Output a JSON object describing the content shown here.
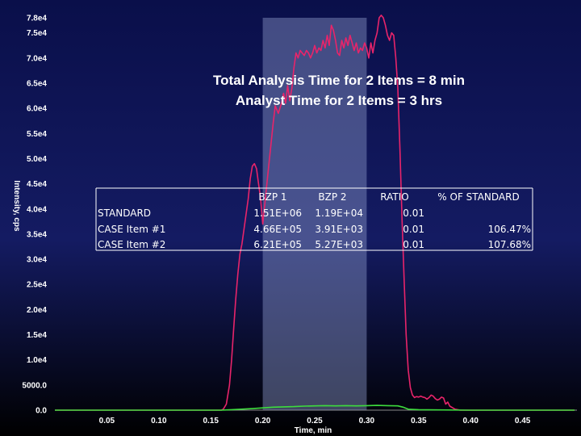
{
  "chart_data": {
    "type": "line",
    "xlabel": "Time, min",
    "ylabel": "Intensity, cps",
    "xlim": [
      0.0,
      0.5
    ],
    "ylim": [
      0,
      78000
    ],
    "y_tick_labels": [
      "0.0",
      "5000.0",
      "1.0e4",
      "1.5e4",
      "2.0e4",
      "2.5e4",
      "3.0e4",
      "3.5e4",
      "4.0e4",
      "4.5e4",
      "5.0e4",
      "5.5e4",
      "6.0e4",
      "6.5e4",
      "7.0e4",
      "7.5e4",
      "7.8e4"
    ],
    "y_tick_values": [
      0,
      5000,
      10000,
      15000,
      20000,
      25000,
      30000,
      35000,
      40000,
      45000,
      50000,
      55000,
      60000,
      65000,
      70000,
      75000,
      78000
    ],
    "x_tick_labels": [
      "0.05",
      "0.10",
      "0.15",
      "0.20",
      "0.25",
      "0.30",
      "0.35",
      "0.40",
      "0.45"
    ],
    "x_tick_values": [
      0.05,
      0.1,
      0.15,
      0.2,
      0.25,
      0.3,
      0.35,
      0.4,
      0.45
    ],
    "highlight_band": {
      "x_start": 0.2,
      "x_end": 0.3,
      "color": "#8a96c8"
    },
    "annotation_lines": [
      "Total Analysis Time for 2 Items = 8 min",
      "Analyst Time for 2 Items = 3 hrs"
    ],
    "grid": false,
    "series": [
      {
        "color": "#e8246a",
        "points": [
          [
            0.0,
            0
          ],
          [
            0.16,
            0
          ],
          [
            0.162,
            200
          ],
          [
            0.165,
            1200
          ],
          [
            0.168,
            5000
          ],
          [
            0.17,
            10000
          ],
          [
            0.172,
            16000
          ],
          [
            0.174,
            22000
          ],
          [
            0.176,
            27000
          ],
          [
            0.178,
            31000
          ],
          [
            0.18,
            33000
          ],
          [
            0.182,
            36000
          ],
          [
            0.184,
            39000
          ],
          [
            0.186,
            42000
          ],
          [
            0.188,
            46000
          ],
          [
            0.19,
            48500
          ],
          [
            0.192,
            49000
          ],
          [
            0.194,
            48000
          ],
          [
            0.196,
            45000
          ],
          [
            0.198,
            42000
          ],
          [
            0.2,
            37000
          ],
          [
            0.202,
            41000
          ],
          [
            0.205,
            47000
          ],
          [
            0.208,
            53000
          ],
          [
            0.21,
            57000
          ],
          [
            0.212,
            60500
          ],
          [
            0.215,
            59000
          ],
          [
            0.218,
            61000
          ],
          [
            0.22,
            63000
          ],
          [
            0.222,
            61000
          ],
          [
            0.224,
            64500
          ],
          [
            0.226,
            61500
          ],
          [
            0.228,
            64000
          ],
          [
            0.23,
            68000
          ],
          [
            0.232,
            71000
          ],
          [
            0.234,
            70000
          ],
          [
            0.236,
            71500
          ],
          [
            0.238,
            71000
          ],
          [
            0.24,
            70500
          ],
          [
            0.242,
            71500
          ],
          [
            0.244,
            71000
          ],
          [
            0.246,
            70000
          ],
          [
            0.248,
            71000
          ],
          [
            0.25,
            72500
          ],
          [
            0.252,
            71000
          ],
          [
            0.254,
            72000
          ],
          [
            0.256,
            71500
          ],
          [
            0.258,
            73500
          ],
          [
            0.26,
            72000
          ],
          [
            0.262,
            74500
          ],
          [
            0.264,
            72500
          ],
          [
            0.266,
            76500
          ],
          [
            0.268,
            75500
          ],
          [
            0.27,
            73500
          ],
          [
            0.272,
            71000
          ],
          [
            0.274,
            70500
          ],
          [
            0.276,
            73500
          ],
          [
            0.278,
            72000
          ],
          [
            0.28,
            74000
          ],
          [
            0.282,
            72500
          ],
          [
            0.284,
            74500
          ],
          [
            0.286,
            73000
          ],
          [
            0.288,
            71500
          ],
          [
            0.29,
            73000
          ],
          [
            0.292,
            71000
          ],
          [
            0.294,
            72000
          ],
          [
            0.296,
            71500
          ],
          [
            0.298,
            73000
          ],
          [
            0.3,
            72000
          ],
          [
            0.302,
            70000
          ],
          [
            0.304,
            73000
          ],
          [
            0.306,
            71000
          ],
          [
            0.308,
            73500
          ],
          [
            0.31,
            75000
          ],
          [
            0.312,
            78000
          ],
          [
            0.314,
            78500
          ],
          [
            0.316,
            78000
          ],
          [
            0.318,
            76500
          ],
          [
            0.32,
            74500
          ],
          [
            0.322,
            73500
          ],
          [
            0.324,
            75000
          ],
          [
            0.326,
            74500
          ],
          [
            0.328,
            70000
          ],
          [
            0.33,
            64000
          ],
          [
            0.332,
            52000
          ],
          [
            0.334,
            38000
          ],
          [
            0.336,
            26000
          ],
          [
            0.338,
            15000
          ],
          [
            0.34,
            8000
          ],
          [
            0.342,
            4500
          ],
          [
            0.344,
            3000
          ],
          [
            0.346,
            2500
          ],
          [
            0.348,
            2700
          ],
          [
            0.35,
            2600
          ],
          [
            0.352,
            2800
          ],
          [
            0.354,
            2600
          ],
          [
            0.356,
            2500
          ],
          [
            0.358,
            2200
          ],
          [
            0.36,
            2500
          ],
          [
            0.362,
            3000
          ],
          [
            0.364,
            2800
          ],
          [
            0.366,
            2300
          ],
          [
            0.368,
            2000
          ],
          [
            0.37,
            2200
          ],
          [
            0.372,
            2600
          ],
          [
            0.374,
            2400
          ],
          [
            0.376,
            1200
          ],
          [
            0.378,
            1600
          ],
          [
            0.38,
            800
          ],
          [
            0.385,
            200
          ],
          [
            0.39,
            0
          ],
          [
            0.5,
            0
          ]
        ]
      },
      {
        "color": "#3ddc3d",
        "points": [
          [
            0.0,
            0
          ],
          [
            0.16,
            0
          ],
          [
            0.17,
            100
          ],
          [
            0.19,
            300
          ],
          [
            0.2,
            450
          ],
          [
            0.21,
            600
          ],
          [
            0.22,
            650
          ],
          [
            0.23,
            700
          ],
          [
            0.24,
            800
          ],
          [
            0.25,
            850
          ],
          [
            0.26,
            900
          ],
          [
            0.27,
            850
          ],
          [
            0.28,
            900
          ],
          [
            0.29,
            850
          ],
          [
            0.3,
            900
          ],
          [
            0.31,
            950
          ],
          [
            0.32,
            900
          ],
          [
            0.33,
            850
          ],
          [
            0.335,
            600
          ],
          [
            0.34,
            200
          ],
          [
            0.35,
            100
          ],
          [
            0.36,
            60
          ],
          [
            0.4,
            0
          ],
          [
            0.5,
            0
          ]
        ]
      }
    ]
  },
  "summary_table": {
    "headers": [
      "",
      "BZP 1",
      "BZP 2",
      "RATIO",
      "% OF STANDARD"
    ],
    "rows": [
      [
        "STANDARD",
        "1.51E+06",
        "1.19E+04",
        "0.01",
        ""
      ],
      [
        "CASE Item #1",
        "4.66E+05",
        "3.91E+03",
        "0.01",
        "106.47%"
      ],
      [
        "CASE Item #2",
        "6.21E+05",
        "5.27E+03",
        "0.01",
        "107.68%"
      ]
    ]
  }
}
